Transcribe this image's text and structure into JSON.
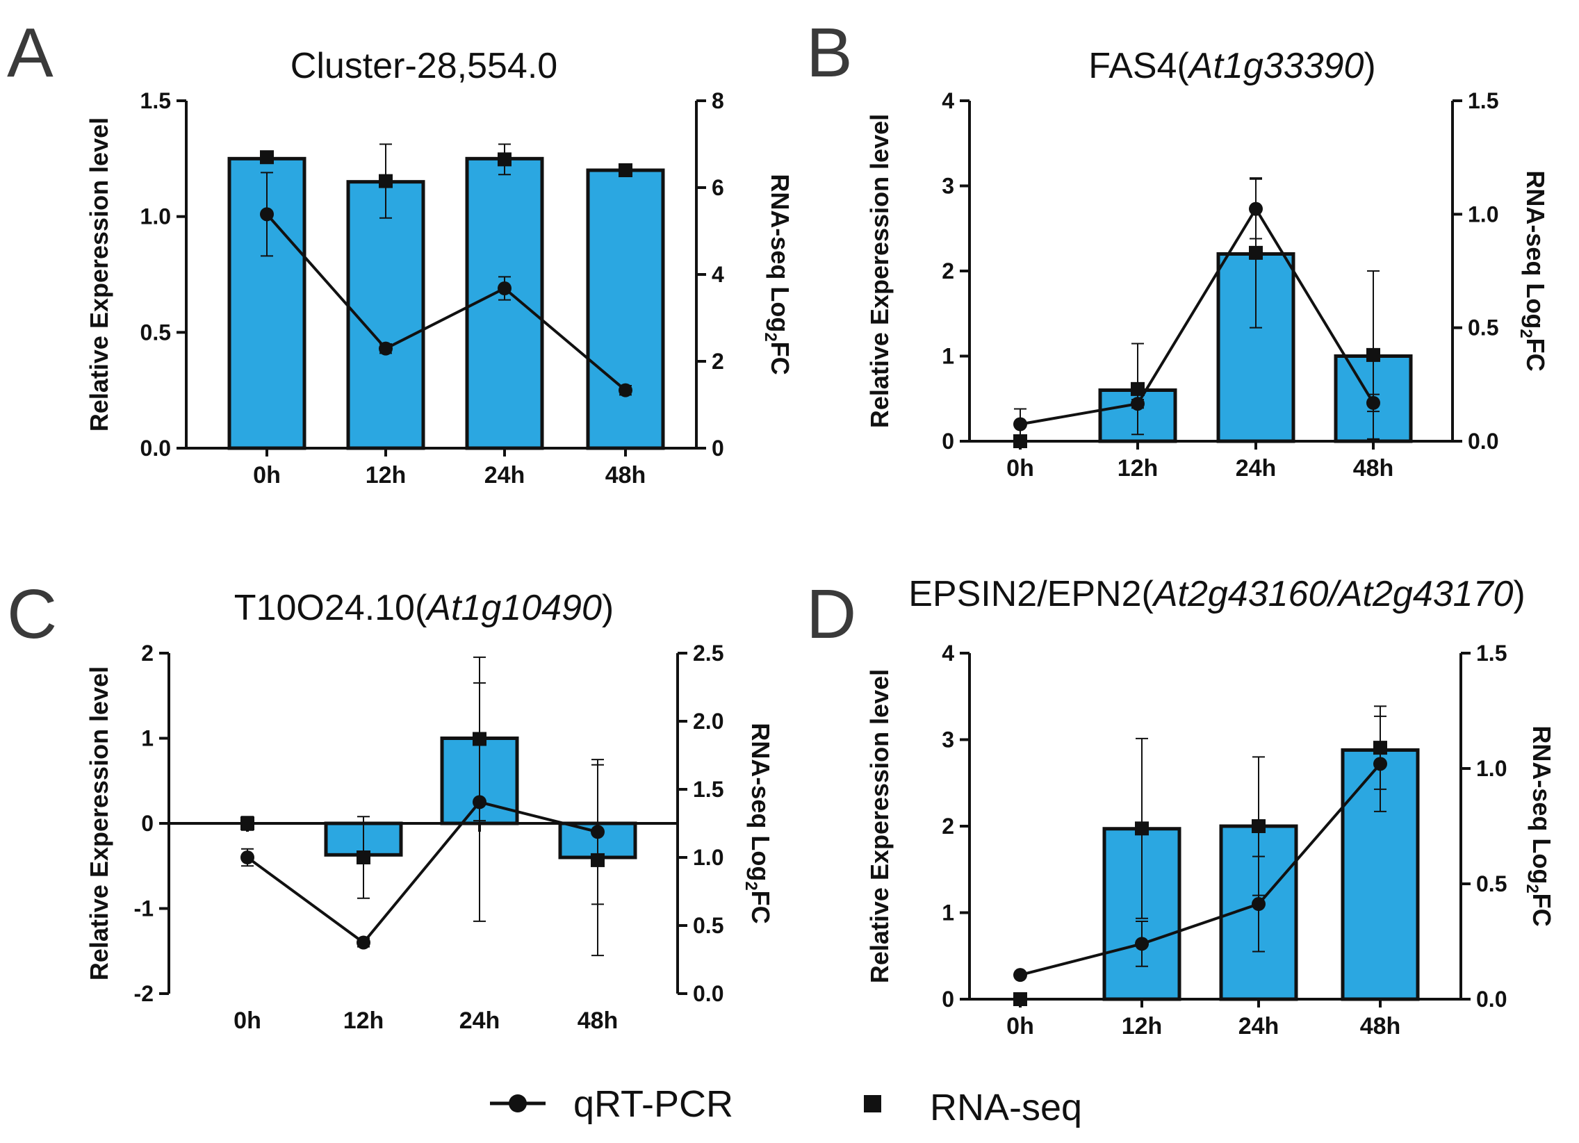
{
  "legend": {
    "items": [
      {
        "label": "qRT-PCR",
        "marker": "circle-line"
      },
      {
        "label": "RNA-seq",
        "marker": "square"
      }
    ]
  },
  "colors": {
    "bar": "#2BA7E1",
    "ink": "#111111"
  },
  "chart_data": [
    {
      "panel": "A",
      "type": "bar",
      "title": "Cluster-28,554.0",
      "title_italic": "",
      "categories": [
        "0h",
        "12h",
        "24h",
        "48h"
      ],
      "ylabel": "Relative Experession level",
      "y2label": "RNA-seq Log",
      "y2label_sub": "2",
      "y2label_tail": "FC",
      "ylim": [
        0,
        1.5
      ],
      "yticks": [
        "0.0",
        "0.5",
        "1.0",
        "1.5"
      ],
      "y2lim": [
        0,
        8
      ],
      "y2ticks": [
        "0",
        "2",
        "4",
        "6",
        "8"
      ],
      "zero_line": false,
      "series": [
        {
          "name": "qRT-PCR (bars)",
          "axis": "left",
          "values": [
            1.25,
            1.15,
            1.25,
            1.2
          ]
        },
        {
          "name": "qRT-PCR",
          "axis": "left",
          "values": [
            1.01,
            0.43,
            0.69,
            0.25
          ],
          "errors": [
            0.18,
            0.02,
            0.05,
            0.02
          ]
        },
        {
          "name": "RNA-seq",
          "axis": "right",
          "values": [
            6.7,
            6.15,
            6.65,
            6.4
          ],
          "errors": [
            0.05,
            0.85,
            0.35,
            0.05
          ]
        }
      ]
    },
    {
      "panel": "B",
      "type": "bar",
      "title": "FAS4(",
      "title_italic": "At1g33390",
      "title_tail": ")",
      "categories": [
        "0h",
        "12h",
        "24h",
        "48h"
      ],
      "ylabel": "Relative Experession level",
      "y2label": "RNA-seq Log",
      "y2label_sub": "2",
      "y2label_tail": "FC",
      "ylim": [
        0,
        4
      ],
      "yticks": [
        "0",
        "1",
        "2",
        "3",
        "4"
      ],
      "y2lim": [
        0,
        1.5
      ],
      "y2ticks": [
        "0.0",
        "0.5",
        "1.0",
        "1.5"
      ],
      "zero_line": false,
      "series": [
        {
          "name": "qRT-PCR (bars)",
          "axis": "left",
          "values": [
            0,
            0.6,
            2.2,
            1.0
          ]
        },
        {
          "name": "qRT-PCR",
          "axis": "left",
          "values": [
            0.2,
            0.44,
            2.73,
            0.45
          ],
          "errors": [
            0.18,
            0.05,
            0.35,
            0.1
          ]
        },
        {
          "name": "RNA-seq",
          "axis": "right",
          "values": [
            0.0,
            0.23,
            0.83,
            0.38
          ],
          "errors": [
            0.0,
            0.2,
            0.33,
            0.37
          ]
        }
      ]
    },
    {
      "panel": "C",
      "type": "bar",
      "title": "T10O24.10(",
      "title_italic": "At1g10490",
      "title_tail": ")",
      "categories": [
        "0h",
        "12h",
        "24h",
        "48h"
      ],
      "ylabel": "Relative Experession level",
      "y2label": "RNA-seq Log",
      "y2label_sub": "2",
      "y2label_tail": "FC",
      "ylim": [
        -2,
        2
      ],
      "yticks": [
        "-2",
        "-1",
        "0",
        "1",
        "2"
      ],
      "y2lim": [
        0,
        2.5
      ],
      "y2ticks": [
        "0.0",
        "0.5",
        "1.0",
        "1.5",
        "2.0",
        "2.5"
      ],
      "zero_line": true,
      "series": [
        {
          "name": "qRT-PCR (bars)",
          "axis": "left",
          "values": [
            0,
            -0.37,
            1.0,
            -0.4
          ]
        },
        {
          "name": "qRT-PCR",
          "axis": "left",
          "values": [
            -0.4,
            -1.4,
            0.25,
            -0.1
          ],
          "errors": [
            0.1,
            0.05,
            1.4,
            0.85
          ]
        },
        {
          "name": "RNA-seq",
          "axis": "right",
          "values": [
            1.25,
            1.0,
            1.87,
            0.98
          ],
          "errors": [
            0.05,
            0.3,
            0.6,
            0.7
          ]
        }
      ]
    },
    {
      "panel": "D",
      "type": "bar",
      "title": "EPSIN2/EPN2(",
      "title_italic": "At2g43160/At2g43170",
      "title_tail": ")",
      "categories": [
        "0h",
        "12h",
        "24h",
        "48h"
      ],
      "ylabel": "Relative Experession level",
      "y2label": "RNA-seq Log",
      "y2label_sub": "2",
      "y2label_tail": "FC",
      "ylim": [
        0,
        4
      ],
      "yticks": [
        "0",
        "1",
        "2",
        "3",
        "4"
      ],
      "y2lim": [
        0,
        1.5
      ],
      "y2ticks": [
        "0.0",
        "0.5",
        "1.0",
        "1.5"
      ],
      "zero_line": false,
      "series": [
        {
          "name": "qRT-PCR (bars)",
          "axis": "left",
          "values": [
            0,
            1.97,
            2.0,
            2.88
          ]
        },
        {
          "name": "qRT-PCR",
          "axis": "left",
          "values": [
            0.28,
            0.64,
            1.1,
            2.72
          ],
          "errors": [
            0.0,
            0.26,
            0.55,
            0.55
          ]
        },
        {
          "name": "RNA-seq",
          "axis": "right",
          "values": [
            0.0,
            0.74,
            0.75,
            1.09
          ],
          "errors": [
            0.0,
            0.39,
            0.3,
            0.18
          ]
        }
      ]
    }
  ]
}
